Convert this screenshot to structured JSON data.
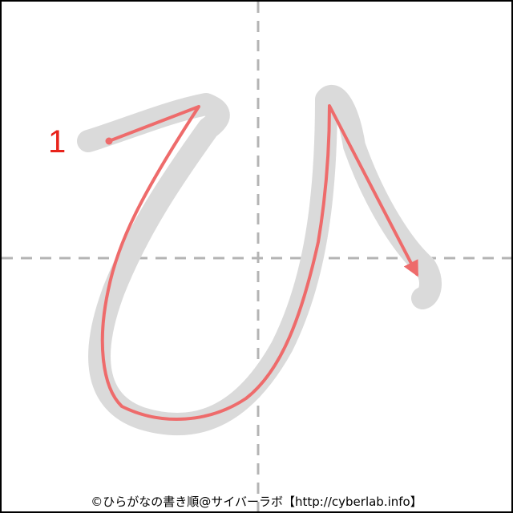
{
  "character": "ひ",
  "stroke_count": 1,
  "strokes": [
    {
      "number": "1"
    }
  ],
  "colors": {
    "guide_lines": "#b4b4b4",
    "shadow_stroke": "#dadada",
    "stroke_path": "#ee6b6b",
    "stroke_number": "#e8231b",
    "border": "#000000"
  },
  "credit": "©ひらがなの書き順@サイバーラボ【http://cyberlab.info】"
}
